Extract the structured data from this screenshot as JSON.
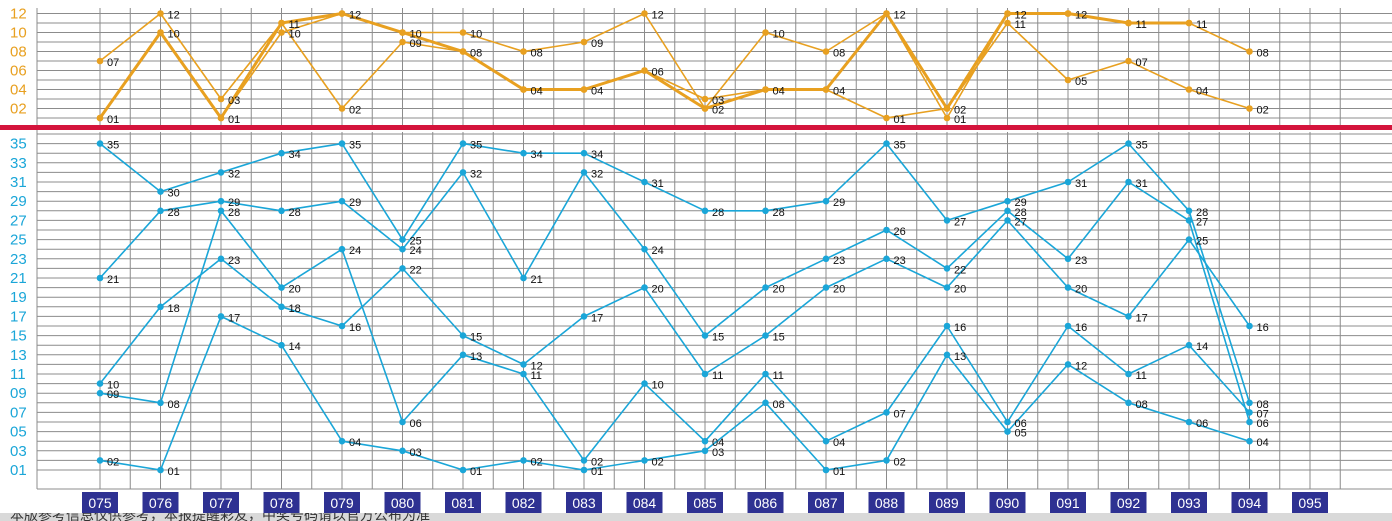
{
  "chart_data": [
    {
      "type": "line",
      "title": "",
      "categories": [
        "075",
        "076",
        "077",
        "078",
        "079",
        "080",
        "081",
        "082",
        "083",
        "084",
        "085",
        "086",
        "087",
        "088",
        "089",
        "090",
        "091",
        "092",
        "093",
        "094",
        "095"
      ],
      "y_ticks": [
        "02",
        "04",
        "06",
        "08",
        "10",
        "12"
      ],
      "ylim": [
        0,
        12
      ],
      "series": [
        {
          "values": [
            1,
            10,
            1,
            10,
            12,
            10,
            10,
            8,
            9,
            12,
            2,
            10,
            8,
            12,
            1,
            12,
            12,
            11,
            11,
            8,
            null
          ],
          "style": "thin",
          "color": "#e8a020"
        },
        {
          "values": [
            1,
            10,
            1,
            11,
            12,
            10,
            8,
            4,
            4,
            6,
            2,
            4,
            4,
            12,
            2,
            12,
            12,
            11,
            11,
            null,
            null
          ],
          "style": "thick",
          "color": "#e8a020"
        },
        {
          "values": [
            7,
            12,
            3,
            11,
            2,
            9,
            8,
            4,
            4,
            6,
            3,
            4,
            4,
            1,
            2,
            11,
            5,
            7,
            4,
            2,
            null
          ],
          "style": "thin",
          "color": "#e8a020"
        }
      ],
      "point_labels": [
        [
          [
            "01",
            "07"
          ],
          [
            "12",
            "10"
          ],
          [
            "03",
            "01"
          ],
          [
            "11",
            "10"
          ],
          [
            "12",
            "02"
          ],
          [
            "10",
            "09"
          ],
          [
            "10",
            "08"
          ],
          [
            "08",
            "04"
          ],
          [
            "09",
            "04"
          ],
          [
            "12",
            "06"
          ],
          [
            "03",
            "02"
          ],
          [
            "10",
            "04"
          ],
          [
            "08",
            "04"
          ],
          [
            "12",
            "01"
          ],
          [
            "02",
            "01"
          ],
          [
            "12",
            "11"
          ],
          [
            "12",
            "05"
          ],
          [
            "11",
            "07"
          ],
          [
            "11",
            "04"
          ],
          [
            "08",
            "02"
          ]
        ]
      ]
    },
    {
      "type": "line",
      "title": "",
      "categories": [
        "075",
        "076",
        "077",
        "078",
        "079",
        "080",
        "081",
        "082",
        "083",
        "084",
        "085",
        "086",
        "087",
        "088",
        "089",
        "090",
        "091",
        "092",
        "093",
        "094",
        "095"
      ],
      "y_ticks": [
        "01",
        "03",
        "05",
        "07",
        "09",
        "11",
        "13",
        "15",
        "17",
        "19",
        "21",
        "23",
        "25",
        "27",
        "29",
        "31",
        "33",
        "35"
      ],
      "ylim": [
        0,
        36
      ],
      "series": [
        {
          "values": [
            35,
            30,
            32,
            34,
            35,
            25,
            35,
            34,
            34,
            31,
            28,
            28,
            29,
            35,
            27,
            29,
            31,
            35,
            28,
            8,
            null
          ],
          "style": "thin",
          "color": "#1aa6d8"
        },
        {
          "values": [
            21,
            28,
            29,
            28,
            29,
            24,
            32,
            21,
            32,
            24,
            15,
            20,
            23,
            26,
            22,
            28,
            23,
            31,
            27,
            6,
            null
          ],
          "style": "thin",
          "color": "#1aa6d8"
        },
        {
          "values": [
            10,
            18,
            23,
            18,
            16,
            22,
            15,
            12,
            17,
            20,
            11,
            15,
            20,
            23,
            20,
            27,
            20,
            17,
            25,
            16,
            null
          ],
          "style": "thin",
          "color": "#1aa6d8"
        },
        {
          "values": [
            9,
            8,
            28,
            20,
            24,
            6,
            13,
            11,
            2,
            10,
            4,
            11,
            4,
            7,
            16,
            6,
            16,
            11,
            14,
            7,
            null
          ],
          "style": "thin",
          "color": "#1aa6d8"
        },
        {
          "values": [
            2,
            1,
            17,
            14,
            4,
            3,
            1,
            2,
            1,
            2,
            3,
            8,
            1,
            2,
            13,
            5,
            12,
            8,
            6,
            4,
            null
          ],
          "style": "thin",
          "color": "#1aa6d8"
        }
      ],
      "labels_shown": [
        [
          "35",
          "21",
          "10",
          "09",
          "02"
        ],
        [
          "30",
          "28",
          "18",
          "08",
          "01"
        ],
        [
          "32",
          "29",
          "28",
          "23",
          "17"
        ],
        [
          "34",
          "28",
          "20",
          "18",
          "14"
        ],
        [
          "35",
          "29",
          "24",
          "16",
          "04"
        ],
        [
          "25",
          "24",
          "22",
          "06",
          "03"
        ],
        [
          "35",
          "32",
          "15",
          "13",
          "01"
        ],
        [
          "34",
          "21",
          "12",
          "11",
          "02"
        ],
        [
          "34",
          "32",
          "17",
          "02",
          "01"
        ],
        [
          "31",
          "24",
          "20",
          "10",
          "02"
        ],
        [
          "28",
          "15",
          "11",
          "04",
          "03"
        ],
        [
          "28",
          "20",
          "15",
          "11",
          "08"
        ],
        [
          "29",
          "23",
          "20",
          "04",
          "01"
        ],
        [
          "35",
          "26",
          "23",
          "07",
          "02"
        ],
        [
          "27",
          "22",
          "20",
          "16",
          "13"
        ],
        [
          "29",
          "28",
          "27",
          "06",
          "05"
        ],
        [
          "31",
          "23",
          "20",
          "16",
          "12"
        ],
        [
          "35",
          "31",
          "17",
          "11",
          "08"
        ],
        [
          "28",
          "27",
          "25",
          "14",
          "06"
        ],
        [
          "16",
          "08",
          "07",
          "06",
          "04"
        ]
      ]
    }
  ],
  "footer_text": "本版参考信息仅供参考，本报提醒彩友，中奖号码请以官方公布为准",
  "colors": {
    "orange": "#e8a020",
    "blue": "#1aa6d8",
    "divider": "#d4143c",
    "grid": "#8c8c8c",
    "issue_box": "#2e3192"
  }
}
